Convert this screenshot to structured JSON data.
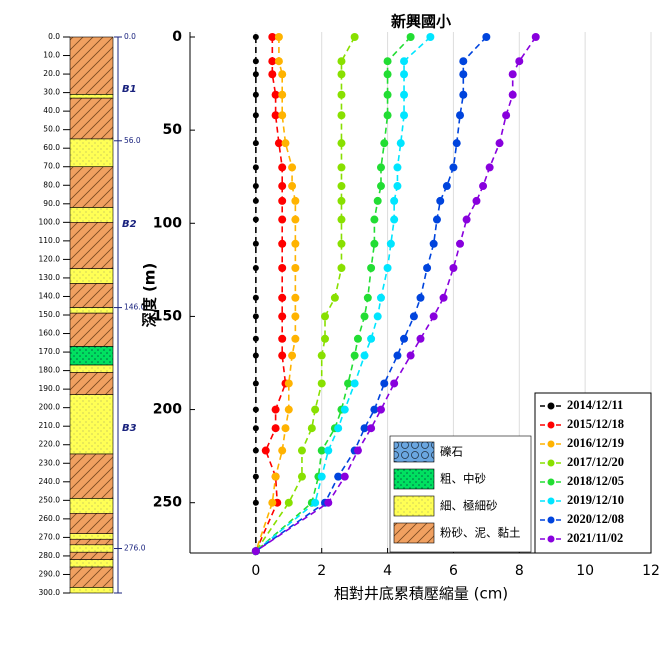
{
  "chart_data": {
    "type": "line",
    "title": "新興國小",
    "xlabel": "相對井底累積壓縮量 (cm)",
    "ylabel": "深度 (m)",
    "depths": [
      0,
      13,
      20,
      31,
      42,
      57,
      70,
      80,
      88,
      98,
      111,
      124,
      140,
      150,
      162,
      171,
      186,
      200,
      210,
      222,
      236,
      250,
      276
    ],
    "xlim": [
      -2,
      12
    ],
    "xticks": [
      0,
      2,
      4,
      6,
      8,
      10,
      12
    ],
    "ylim": [
      277,
      0
    ],
    "yticks": [
      0,
      50,
      100,
      150,
      200,
      250
    ],
    "grid": true,
    "legend": "lower right",
    "series": [
      {
        "name": "2014/12/11",
        "color": "#000000",
        "values": [
          0,
          0,
          0,
          0,
          0,
          0,
          0,
          0,
          0,
          0,
          0,
          0,
          0,
          0,
          0,
          0,
          0,
          0,
          0,
          0,
          0,
          0,
          0
        ]
      },
      {
        "name": "2015/12/18",
        "color": "#ff0000",
        "values": [
          0.5,
          0.5,
          0.5,
          0.6,
          0.6,
          0.7,
          0.8,
          0.8,
          0.8,
          0.8,
          0.8,
          0.8,
          0.8,
          0.8,
          0.8,
          0.8,
          0.9,
          0.6,
          0.6,
          0.3,
          0.6,
          0.65,
          0
        ]
      },
      {
        "name": "2016/12/19",
        "color": "#ffb300",
        "values": [
          0.7,
          0.7,
          0.8,
          0.8,
          0.8,
          0.9,
          1.1,
          1.1,
          1.2,
          1.2,
          1.2,
          1.2,
          1.2,
          1.2,
          1.2,
          1.1,
          1.0,
          1.0,
          0.9,
          0.8,
          0.6,
          0.5,
          0
        ]
      },
      {
        "name": "2017/12/20",
        "color": "#88e000",
        "values": [
          3.0,
          2.6,
          2.6,
          2.6,
          2.6,
          2.6,
          2.6,
          2.6,
          2.6,
          2.6,
          2.6,
          2.6,
          2.4,
          2.1,
          2.1,
          2.0,
          2.0,
          1.8,
          1.7,
          1.4,
          1.4,
          1.0,
          0
        ]
      },
      {
        "name": "2018/12/05",
        "color": "#22dd33",
        "values": [
          4.7,
          4.0,
          4.0,
          4.0,
          4.0,
          3.9,
          3.8,
          3.8,
          3.7,
          3.6,
          3.6,
          3.5,
          3.4,
          3.3,
          3.1,
          3.0,
          2.8,
          2.6,
          2.4,
          2.0,
          1.9,
          1.7,
          0
        ]
      },
      {
        "name": "2019/12/10",
        "color": "#00e5ff",
        "values": [
          5.3,
          4.5,
          4.5,
          4.5,
          4.5,
          4.4,
          4.3,
          4.3,
          4.2,
          4.2,
          4.1,
          4.0,
          3.8,
          3.7,
          3.5,
          3.3,
          3.0,
          2.7,
          2.5,
          2.2,
          2.0,
          1.8,
          0
        ]
      },
      {
        "name": "2020/12/08",
        "color": "#0044dd",
        "values": [
          7.0,
          6.3,
          6.3,
          6.3,
          6.2,
          6.1,
          6.0,
          5.8,
          5.6,
          5.5,
          5.4,
          5.2,
          5.0,
          4.8,
          4.5,
          4.3,
          3.9,
          3.6,
          3.3,
          3.0,
          2.5,
          2.1,
          0
        ]
      },
      {
        "name": "2021/11/02",
        "color": "#8800dd",
        "values": [
          8.5,
          8.0,
          7.8,
          7.8,
          7.6,
          7.4,
          7.1,
          6.9,
          6.7,
          6.4,
          6.2,
          6.0,
          5.7,
          5.4,
          5.0,
          4.7,
          4.2,
          3.8,
          3.5,
          3.1,
          2.7,
          2.2,
          0
        ]
      }
    ]
  },
  "soil_legend": [
    "礫石",
    "粗、中砂",
    "細、極細砂",
    "粉砂、泥、黏土"
  ],
  "log": {
    "ylim": [
      0,
      300
    ],
    "ticks": [
      {
        "value": 0,
        "label": "0.0"
      },
      {
        "value": 10,
        "label": "10.0"
      },
      {
        "value": 20,
        "label": "20.0"
      },
      {
        "value": 30,
        "label": "30.0"
      },
      {
        "value": 40,
        "label": "40.0"
      },
      {
        "value": 50,
        "label": "50.0"
      },
      {
        "value": 60,
        "label": "60.0"
      },
      {
        "value": 70,
        "label": "70.0"
      },
      {
        "value": 80,
        "label": "80.0"
      },
      {
        "value": 90,
        "label": "90.0"
      },
      {
        "value": 100,
        "label": "100.0"
      },
      {
        "value": 110,
        "label": "110.0"
      },
      {
        "value": 120,
        "label": "120.0"
      },
      {
        "value": 130,
        "label": "130.0"
      },
      {
        "value": 140,
        "label": "140.0"
      },
      {
        "value": 150,
        "label": "150.0"
      },
      {
        "value": 160,
        "label": "160.0"
      },
      {
        "value": 170,
        "label": "170.0"
      },
      {
        "value": 180,
        "label": "180.0"
      },
      {
        "value": 190,
        "label": "190.0"
      },
      {
        "value": 200,
        "label": "200.0"
      },
      {
        "value": 210,
        "label": "210.0"
      },
      {
        "value": 220,
        "label": "220.0"
      },
      {
        "value": 230,
        "label": "230.0"
      },
      {
        "value": 240,
        "label": "240.0"
      },
      {
        "value": 250,
        "label": "250.0"
      },
      {
        "value": 260,
        "label": "260.0"
      },
      {
        "value": 270,
        "label": "270.0"
      },
      {
        "value": 280,
        "label": "280.0"
      },
      {
        "value": 290,
        "label": "290.0"
      },
      {
        "value": 300,
        "label": "300.0"
      }
    ],
    "boundaries": [
      {
        "value": 0,
        "label": "0.0"
      },
      {
        "value": 56,
        "label": "56.0"
      },
      {
        "value": 146,
        "label": "146.0"
      },
      {
        "value": 276,
        "label": "276.0"
      }
    ],
    "units": [
      "B1",
      "B2",
      "B3"
    ],
    "layers": [
      {
        "top": 0,
        "bottom": 31,
        "soil": 3
      },
      {
        "top": 31,
        "bottom": 33,
        "soil": 2
      },
      {
        "top": 33,
        "bottom": 55,
        "soil": 3
      },
      {
        "top": 55,
        "bottom": 70,
        "soil": 2
      },
      {
        "top": 70,
        "bottom": 92,
        "soil": 3
      },
      {
        "top": 92,
        "bottom": 100,
        "soil": 2
      },
      {
        "top": 100,
        "bottom": 125,
        "soil": 3
      },
      {
        "top": 125,
        "bottom": 133,
        "soil": 2
      },
      {
        "top": 133,
        "bottom": 146,
        "soil": 3
      },
      {
        "top": 146,
        "bottom": 149,
        "soil": 2
      },
      {
        "top": 149,
        "bottom": 167,
        "soil": 3
      },
      {
        "top": 167,
        "bottom": 177,
        "soil": 1
      },
      {
        "top": 177,
        "bottom": 181,
        "soil": 2
      },
      {
        "top": 181,
        "bottom": 193,
        "soil": 3
      },
      {
        "top": 193,
        "bottom": 225,
        "soil": 2
      },
      {
        "top": 225,
        "bottom": 249,
        "soil": 3
      },
      {
        "top": 249,
        "bottom": 257,
        "soil": 2
      },
      {
        "top": 257,
        "bottom": 268,
        "soil": 3
      },
      {
        "top": 268,
        "bottom": 271,
        "soil": 2
      },
      {
        "top": 271,
        "bottom": 274,
        "soil": 3
      },
      {
        "top": 274,
        "bottom": 278,
        "soil": 2
      },
      {
        "top": 278,
        "bottom": 282,
        "soil": 3
      },
      {
        "top": 282,
        "bottom": 286,
        "soil": 2
      },
      {
        "top": 286,
        "bottom": 297,
        "soil": 3
      },
      {
        "top": 297,
        "bottom": 300,
        "soil": 2
      }
    ]
  }
}
